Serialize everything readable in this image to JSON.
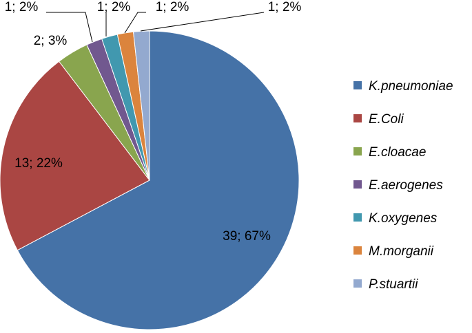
{
  "chart_data": {
    "type": "pie",
    "title": "",
    "start_angle_deg": 0,
    "direction": "clockwise",
    "legend_position": "right",
    "slices": [
      {
        "name": "K.pneumoniae",
        "value": 39,
        "percent": "67%",
        "label": "39; 67%",
        "color": "#4572a7"
      },
      {
        "name": "E.Coli",
        "value": 13,
        "percent": "22%",
        "label": "13; 22%",
        "color": "#aa4643"
      },
      {
        "name": "E.cloacae",
        "value": 2,
        "percent": "3%",
        "label": "2; 3%",
        "color": "#89a54e"
      },
      {
        "name": "E.aerogenes",
        "value": 1,
        "percent": "2%",
        "label": "1; 2%",
        "color": "#71588f"
      },
      {
        "name": "K.oxygenes",
        "value": 1,
        "percent": "2%",
        "label": "1; 2%",
        "color": "#4198af"
      },
      {
        "name": "M.morganii",
        "value": 1,
        "percent": "2%",
        "label": "1; 2%",
        "color": "#db843d"
      },
      {
        "name": "P.stuartii",
        "value": 1,
        "percent": "2%",
        "label": "1; 2%",
        "color": "#93a9cf"
      }
    ]
  }
}
